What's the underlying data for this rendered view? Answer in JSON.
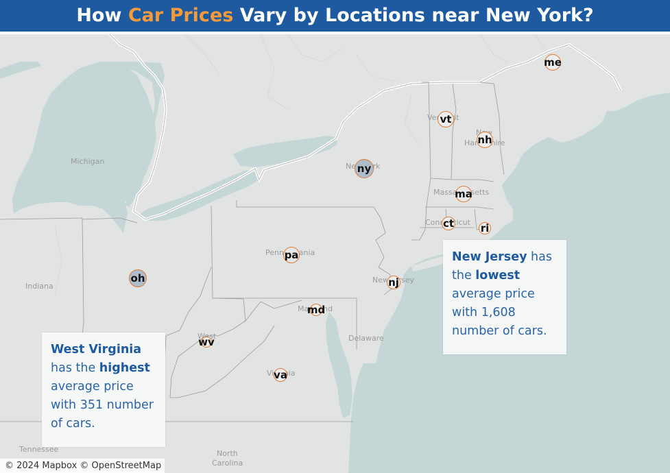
{
  "title": {
    "part1": "How ",
    "accent": "Car Prices",
    "part2": " Vary by Locations near New York?"
  },
  "colors": {
    "header_bg": "#1d5aa0",
    "title_accent": "#f39b3c",
    "marker_outline": "#e07b35",
    "marker_fill_highlight": "#aebdcc",
    "water": "#c4d6d6",
    "land": "#e2e4e4",
    "callout_text": "#2a64a7"
  },
  "map": {
    "place_labels": {
      "michigan": "Michigan",
      "indiana": "Indiana",
      "tennessee": "Tennessee",
      "north_carolina_1": "North",
      "north_carolina_2": "Carolina",
      "delaware": "Delaware",
      "new_york": "New York",
      "pennsylvania": "Pennsylvania",
      "new_jersey": "New Jersey",
      "maryland": "Maryland",
      "virginia": "Virginia",
      "vermont": "Vermont",
      "new_hampshire_1": "New",
      "new_hampshire_2": "Hampshire",
      "massachusetts": "Massachusetts",
      "connecticut": "Connecticut",
      "west_virginia": "West"
    },
    "markers": {
      "me": {
        "code": "me",
        "fill": "#eeeeee"
      },
      "vt": {
        "code": "vt",
        "fill": "#eeeeee"
      },
      "nh": {
        "code": "nh",
        "fill": "#eeeeee"
      },
      "ny": {
        "code": "ny",
        "fill": "#aebdcc"
      },
      "ma": {
        "code": "ma",
        "fill": "#e9e9e9"
      },
      "ct": {
        "code": "ct",
        "fill": "#eeeeee"
      },
      "ri": {
        "code": "ri",
        "fill": "#eeeeee"
      },
      "pa": {
        "code": "pa",
        "fill": "#e6e6e6"
      },
      "oh": {
        "code": "oh",
        "fill": "#aebdcc"
      },
      "nj": {
        "code": "nj",
        "fill": "#eeeeee"
      },
      "md": {
        "code": "md",
        "fill": "#eeeeee"
      },
      "wv": {
        "code": "wv",
        "fill": "#eeeeee"
      },
      "va": {
        "code": "va",
        "fill": "#eeeeee"
      }
    }
  },
  "callouts": {
    "lowest": {
      "state": "New Jersey",
      "text1": " has the ",
      "emph": "lowest",
      "text2": " average price with 1,608 number of cars."
    },
    "highest": {
      "state": "West Virginia",
      "text1": " has the ",
      "emph": "highest",
      "text2": " average price with 351 number of cars."
    }
  },
  "attribution": "© 2024 Mapbox © OpenStreetMap"
}
